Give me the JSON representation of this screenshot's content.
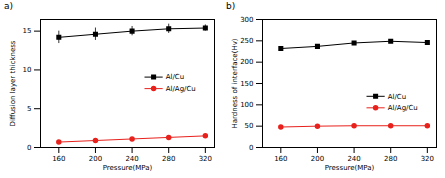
{
  "chart_data": [
    {
      "type": "line",
      "title": "a)",
      "x_label": "Pressure(MPa)",
      "y_label": "Diffusion layer thickness",
      "x": [
        160,
        200,
        240,
        280,
        320
      ],
      "xlim": [
        140,
        330
      ],
      "xticks": [
        160,
        200,
        240,
        280,
        320
      ],
      "ylim": [
        0,
        16.5
      ],
      "yticks": [
        0,
        5,
        10,
        15
      ],
      "grid": false,
      "legend": "right",
      "series": [
        {
          "name": "Al/Cu",
          "color": "#000000",
          "marker": "square",
          "values": [
            14.2,
            14.6,
            15.0,
            15.3,
            15.4
          ],
          "errors": [
            0.8,
            0.8,
            0.6,
            0.6,
            0.4
          ]
        },
        {
          "name": "Al/Ag/Cu",
          "color": "#e8211c",
          "marker": "circle",
          "values": [
            0.7,
            0.9,
            1.1,
            1.3,
            1.5
          ]
        }
      ]
    },
    {
      "type": "line",
      "title": "b)",
      "x_label": "Pressure(MPa)",
      "y_label": "Hardness of interface(Hv)",
      "x": [
        160,
        200,
        240,
        280,
        320
      ],
      "xlim": [
        140,
        330
      ],
      "xticks": [
        160,
        200,
        240,
        280,
        320
      ],
      "ylim": [
        0,
        300
      ],
      "yticks": [
        0,
        50,
        100,
        150,
        200,
        250,
        300
      ],
      "grid": false,
      "legend": "lower right",
      "series": [
        {
          "name": "Al/Cu",
          "color": "#000000",
          "marker": "square",
          "values": [
            232,
            237,
            245,
            249,
            246
          ]
        },
        {
          "name": "Al/Ag/Cu",
          "color": "#e8211c",
          "marker": "circle",
          "values": [
            48,
            50,
            51,
            51,
            51
          ]
        }
      ]
    }
  ]
}
